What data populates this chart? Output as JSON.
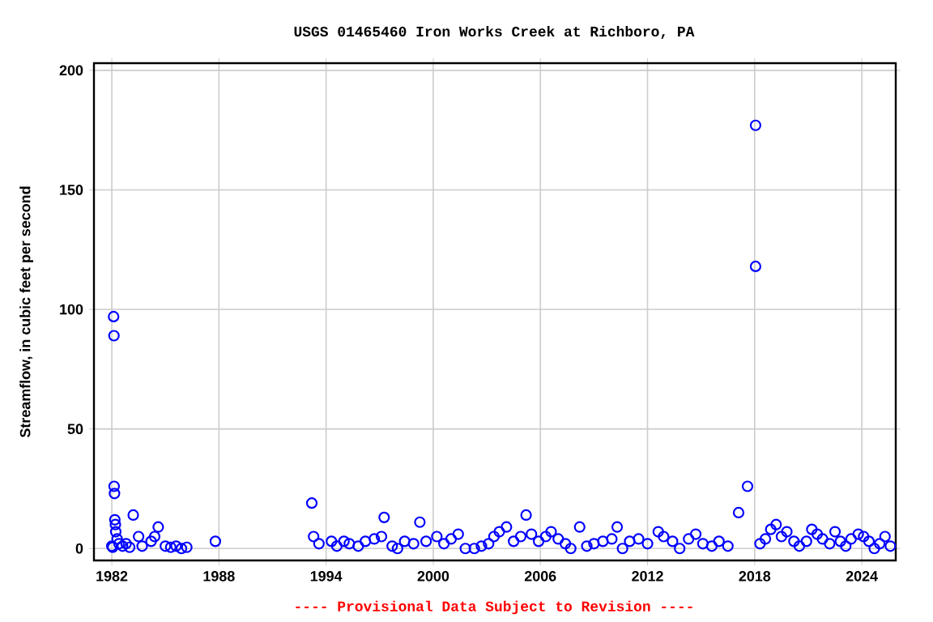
{
  "chart_data": {
    "type": "scatter",
    "title": "USGS 01465460 Iron Works Creek at Richboro, PA",
    "ylabel": "Streamflow, in cubic feet per second",
    "annotations": [
      "---- Provisional Data Subject to Revision ----"
    ],
    "xlim": [
      1981.0,
      2025.9
    ],
    "ylim": [
      -5,
      203
    ],
    "xticks": [
      1982,
      1988,
      1994,
      2000,
      2006,
      2012,
      2018,
      2024
    ],
    "yticks": [
      0,
      50,
      100,
      150,
      200
    ],
    "grid": true,
    "marker": "circle",
    "series": [
      {
        "color": "#0000ff",
        "x": [
          1982.0,
          1982.05,
          1982.1,
          1982.12,
          1982.13,
          1982.15,
          1982.17,
          1982.2,
          1982.22,
          1982.3,
          1982.4,
          1982.6,
          1982.8,
          1983.0,
          1983.2,
          1983.5,
          1983.7,
          1984.2,
          1984.4,
          1984.6,
          1985.0,
          1985.3,
          1985.6,
          1985.9,
          1986.2,
          1987.8,
          1993.2,
          1993.3,
          1993.6,
          1994.3,
          1994.6,
          1995.0,
          1995.3,
          1995.8,
          1996.2,
          1996.7,
          1997.1,
          1997.25,
          1997.7,
          1998.0,
          1998.4,
          1998.9,
          1999.25,
          1999.6,
          2000.2,
          2000.6,
          2001.0,
          2001.4,
          2001.8,
          2002.3,
          2002.7,
          2003.1,
          2003.4,
          2003.7,
          2004.1,
          2004.5,
          2004.9,
          2005.2,
          2005.5,
          2005.9,
          2006.3,
          2006.6,
          2007.0,
          2007.4,
          2007.7,
          2008.2,
          2008.6,
          2009.0,
          2009.5,
          2010.0,
          2010.3,
          2010.6,
          2011.0,
          2011.5,
          2012.0,
          2012.6,
          2012.9,
          2013.4,
          2013.8,
          2014.3,
          2014.7,
          2015.1,
          2015.6,
          2016.0,
          2016.5,
          2017.1,
          2017.6,
          2018.05,
          2018.05,
          2018.3,
          2018.6,
          2018.9,
          2019.2,
          2019.5,
          2019.8,
          2020.2,
          2020.5,
          2020.9,
          2021.2,
          2021.5,
          2021.8,
          2022.2,
          2022.5,
          2022.8,
          2023.1,
          2023.4,
          2023.8,
          2024.1,
          2024.4,
          2024.7,
          2025.0,
          2025.3,
          2025.6
        ],
        "values": [
          1,
          0.5,
          97,
          89,
          26,
          23,
          12,
          10,
          7,
          4,
          2,
          1,
          2,
          0.5,
          14,
          5,
          1,
          3,
          5,
          9,
          1,
          0.5,
          1,
          0,
          0.5,
          3,
          19,
          5,
          2,
          3,
          1,
          3,
          2,
          1,
          3,
          4,
          5,
          13,
          1,
          0,
          3,
          2,
          11,
          3,
          5,
          2,
          4,
          6,
          0,
          0,
          1,
          2,
          5,
          7,
          9,
          3,
          5,
          14,
          6,
          3,
          5,
          7,
          4,
          2,
          0,
          9,
          1,
          2,
          3,
          4,
          9,
          0,
          3,
          4,
          2,
          7,
          5,
          3,
          0,
          4,
          6,
          2,
          1,
          3,
          1,
          15,
          26,
          118,
          177,
          2,
          4,
          8,
          10,
          5,
          7,
          3,
          1,
          3,
          8,
          6,
          4,
          2,
          7,
          3,
          1,
          4,
          6,
          5,
          3,
          0,
          2,
          5,
          1
        ]
      }
    ]
  }
}
